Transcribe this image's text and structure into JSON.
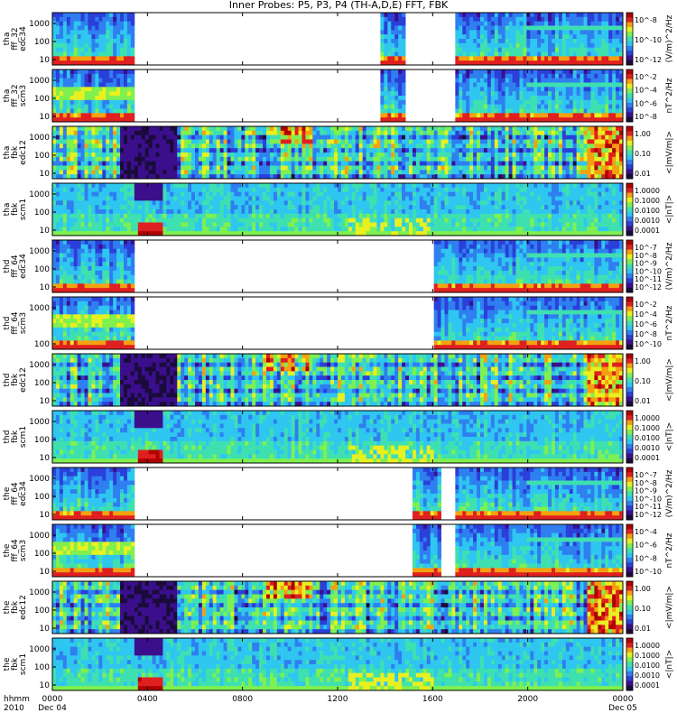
{
  "title": "Inner Probes: P5, P3, P4 (TH-A,D,E) FFT, FBK",
  "colors": {
    "colormap": [
      "#1a0b3a",
      "#3b0f8c",
      "#2b3fd9",
      "#2f7ff0",
      "#2fc6f0",
      "#3fe0b0",
      "#7ff050",
      "#e8f020",
      "#f5a010",
      "#e02020",
      "#b00000"
    ],
    "bad_data_white": "#ffffff"
  },
  "chart_data": {
    "type": "heatmap",
    "title": "Inner Probes: P5, P3, P4 (TH-A,D,E) FFT, FBK",
    "x_axis": {
      "row_label_1": "hhmm",
      "row_label_2": "2010",
      "ticks": [
        "0000",
        "0400",
        "0800",
        "1200",
        "1600",
        "2000",
        "0000"
      ],
      "tick_hours": [
        0,
        4,
        8,
        12,
        16,
        20,
        24
      ],
      "date_labels": [
        "Dec 04",
        "Dec 05"
      ],
      "range_hours": [
        0,
        24
      ]
    },
    "panels": [
      {
        "probe": "tha",
        "label": [
          "tha",
          "fff_32",
          "edc34"
        ],
        "kind": "fff_e",
        "yticks": [
          "1000",
          "100",
          "10"
        ],
        "yscale": "log",
        "cb_ticks": [
          "10^-8",
          "10^-10",
          "10^-12"
        ],
        "cb_unit": "(V/m)^2/Hz",
        "gaps": [
          [
            3.4,
            13.8
          ],
          [
            14.85,
            17.0
          ]
        ]
      },
      {
        "probe": "tha",
        "label": [
          "tha",
          "fff_32",
          "scm3"
        ],
        "kind": "fff_b",
        "yticks": [
          "1000",
          "100",
          "10"
        ],
        "yscale": "log",
        "cb_ticks": [
          "10^-2",
          "10^-4",
          "10^-6",
          "10^-8"
        ],
        "cb_unit": "nT^2/Hz",
        "gaps": [
          [
            3.4,
            13.8
          ],
          [
            14.85,
            17.0
          ]
        ]
      },
      {
        "probe": "tha",
        "label": [
          "tha",
          "fbk",
          "edc12"
        ],
        "kind": "fbk_e",
        "yticks": [
          "1000",
          "100",
          "10"
        ],
        "yscale": "log",
        "cb_ticks": [
          "1.00",
          "0.10",
          "0.01"
        ],
        "cb_unit": "<|mV/m|>",
        "gaps": []
      },
      {
        "probe": "tha",
        "label": [
          "tha",
          "fbk",
          "scm1"
        ],
        "kind": "fbk_b",
        "yticks": [
          "1000",
          "100",
          "10"
        ],
        "yscale": "log",
        "cb_ticks": [
          "1.0000",
          "0.1000",
          "0.0100",
          "0.0010",
          "0.0001"
        ],
        "cb_unit": "<|nT|>",
        "gaps": []
      },
      {
        "probe": "thd",
        "label": [
          "thd",
          "fff_64",
          "edc34"
        ],
        "kind": "fff_e",
        "yticks": [
          "1000",
          "100",
          "10"
        ],
        "yscale": "log",
        "cb_ticks": [
          "10^-7",
          "10^-8",
          "10^-9",
          "10^-10",
          "10^-11",
          "10^-12"
        ],
        "cb_unit": "(V/m)^2/Hz",
        "gaps": [
          [
            3.4,
            16.0
          ]
        ]
      },
      {
        "probe": "thd",
        "label": [
          "thd",
          "fff_64",
          "scm3"
        ],
        "kind": "fff_b",
        "yticks": [
          "1000",
          "100"
        ],
        "yscale": "log",
        "cb_ticks": [
          "10^-2",
          "10^-4",
          "10^-6",
          "10^-8",
          "10^-10"
        ],
        "cb_unit": "nT^2/Hz",
        "gaps": [
          [
            3.4,
            16.0
          ]
        ]
      },
      {
        "probe": "thd",
        "label": [
          "thd",
          "fbk",
          "edc12"
        ],
        "kind": "fbk_e",
        "yticks": [
          "1000",
          "100",
          "10"
        ],
        "yscale": "log",
        "cb_ticks": [
          "1.00",
          "0.10",
          "0.01"
        ],
        "cb_unit": "<|mV/m|>",
        "gaps": []
      },
      {
        "probe": "thd",
        "label": [
          "thd",
          "fbk",
          "scm1"
        ],
        "kind": "fbk_b",
        "yticks": [
          "1000",
          "100",
          "10"
        ],
        "yscale": "log",
        "cb_ticks": [
          "1.0000",
          "0.1000",
          "0.0100",
          "0.0010",
          "0.0001"
        ],
        "cb_unit": "<|nT|>",
        "gaps": []
      },
      {
        "probe": "the",
        "label": [
          "the",
          "fff_64",
          "edc34"
        ],
        "kind": "fff_e",
        "yticks": [
          "1000",
          "100",
          "10"
        ],
        "yscale": "log",
        "cb_ticks": [
          "10^-7",
          "10^-8",
          "10^-9",
          "10^-10",
          "10^-11",
          "10^-12"
        ],
        "cb_unit": "(V/m)^2/Hz",
        "gaps": [
          [
            3.4,
            15.1
          ],
          [
            16.3,
            17.0
          ]
        ]
      },
      {
        "probe": "the",
        "label": [
          "the",
          "fff_64",
          "scm3"
        ],
        "kind": "fff_b",
        "yticks": [
          "1000",
          "100",
          "10"
        ],
        "yscale": "log",
        "cb_ticks": [
          "10^-4",
          "10^-6",
          "10^-8",
          "10^-10"
        ],
        "cb_unit": "nT^2/Hz",
        "gaps": [
          [
            3.4,
            15.1
          ],
          [
            16.3,
            17.0
          ]
        ]
      },
      {
        "probe": "the",
        "label": [
          "the",
          "fbk",
          "edc12"
        ],
        "kind": "fbk_e",
        "yticks": [
          "1000",
          "100",
          "10"
        ],
        "yscale": "log",
        "cb_ticks": [
          "1.00",
          "0.10",
          "0.01"
        ],
        "cb_unit": "<|mV/m|>",
        "gaps": []
      },
      {
        "probe": "the",
        "label": [
          "the",
          "fbk",
          "scm1"
        ],
        "kind": "fbk_b",
        "yticks": [
          "1000",
          "100",
          "10"
        ],
        "yscale": "log",
        "cb_ticks": [
          "1.0000",
          "0.1000",
          "0.0100",
          "0.0010",
          "0.0001"
        ],
        "cb_unit": "<|nT|>",
        "gaps": []
      }
    ]
  }
}
